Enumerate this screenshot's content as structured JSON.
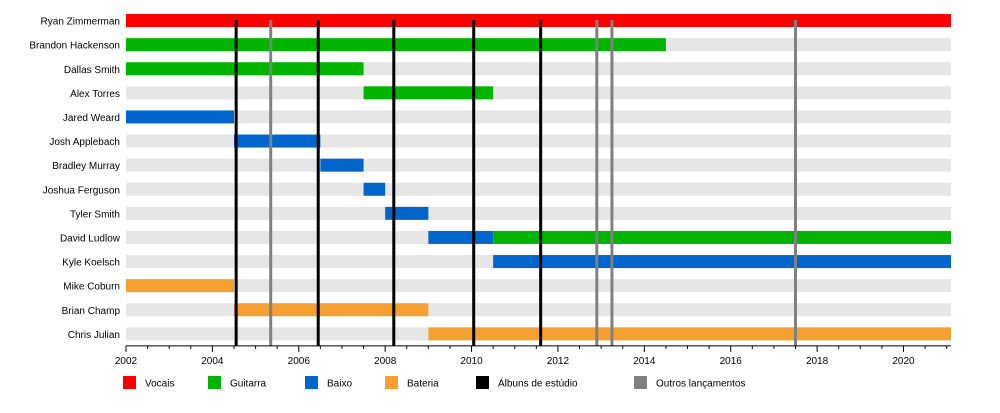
{
  "chart_data": {
    "type": "timeline",
    "title": "",
    "xlabel": "",
    "ylabel": "",
    "xlim": [
      2002,
      2021.1
    ],
    "x_ticks": [
      2002,
      2004,
      2006,
      2008,
      2010,
      2012,
      2014,
      2016,
      2018,
      2020
    ],
    "x_minor_step": 0.5,
    "grid": false,
    "legend_position": "bottom",
    "colors": {
      "vocals": "#ff0000",
      "guitar": "#00b400",
      "bass": "#0066cc",
      "drums": "#f5a030",
      "studio": "#000000",
      "other": "#808080",
      "row_background": "#e6e6e6"
    },
    "members": [
      {
        "name": "Ryan Zimmerman",
        "periods": [
          {
            "role": "vocals",
            "start": 2002.0,
            "end": 2021.1
          }
        ]
      },
      {
        "name": "Brandon Hackenson",
        "periods": [
          {
            "role": "guitar",
            "start": 2002.0,
            "end": 2014.5
          }
        ]
      },
      {
        "name": "Dallas Smith",
        "periods": [
          {
            "role": "guitar",
            "start": 2002.0,
            "end": 2007.5
          }
        ]
      },
      {
        "name": "Alex Torres",
        "periods": [
          {
            "role": "guitar",
            "start": 2007.5,
            "end": 2010.5
          }
        ]
      },
      {
        "name": "Jared Weard",
        "periods": [
          {
            "role": "bass",
            "start": 2002.0,
            "end": 2004.5
          }
        ]
      },
      {
        "name": "Josh Applebach",
        "periods": [
          {
            "role": "bass",
            "start": 2004.5,
            "end": 2006.5
          }
        ]
      },
      {
        "name": "Bradley Murray",
        "periods": [
          {
            "role": "bass",
            "start": 2006.5,
            "end": 2007.5
          }
        ]
      },
      {
        "name": "Joshua Ferguson",
        "periods": [
          {
            "role": "bass",
            "start": 2007.5,
            "end": 2008.0
          }
        ]
      },
      {
        "name": "Tyler Smith",
        "periods": [
          {
            "role": "bass",
            "start": 2008.0,
            "end": 2009.0
          }
        ]
      },
      {
        "name": "David Ludlow",
        "periods": [
          {
            "role": "bass",
            "start": 2009.0,
            "end": 2010.5
          },
          {
            "role": "guitar",
            "start": 2010.5,
            "end": 2021.1
          }
        ]
      },
      {
        "name": "Kyle Koelsch",
        "periods": [
          {
            "role": "bass",
            "start": 2010.5,
            "end": 2021.1
          }
        ]
      },
      {
        "name": "Mike Coburn",
        "periods": [
          {
            "role": "drums",
            "start": 2002.0,
            "end": 2004.5
          }
        ]
      },
      {
        "name": "Brian Champ",
        "periods": [
          {
            "role": "drums",
            "start": 2004.5,
            "end": 2009.0
          }
        ]
      },
      {
        "name": "Chris Julian",
        "periods": [
          {
            "role": "drums",
            "start": 2009.0,
            "end": 2021.1
          }
        ]
      }
    ],
    "releases": {
      "studio": [
        2004.55,
        2006.45,
        2008.2,
        2010.05,
        2011.6
      ],
      "other": [
        2005.35,
        2012.9,
        2013.25,
        2017.5
      ]
    },
    "legend": [
      {
        "key": "vocals",
        "label": "Vocais"
      },
      {
        "key": "guitar",
        "label": "Guitarra"
      },
      {
        "key": "bass",
        "label": "Baixo"
      },
      {
        "key": "drums",
        "label": "Bateria"
      },
      {
        "key": "studio",
        "label": "Álbuns de estúdio"
      },
      {
        "key": "other",
        "label": "Outros lançamentos"
      }
    ]
  }
}
